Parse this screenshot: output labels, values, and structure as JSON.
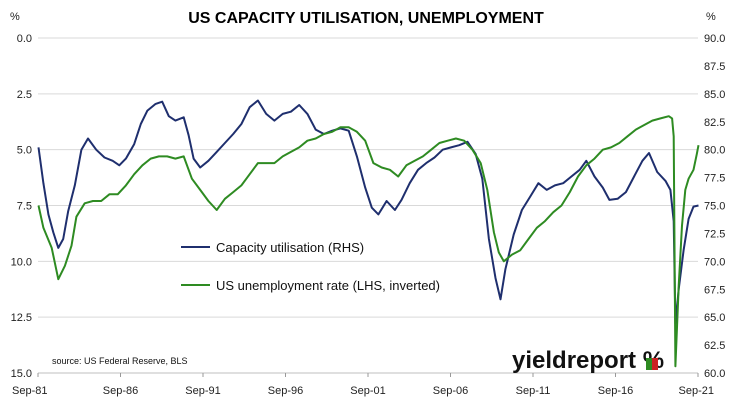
{
  "chart_data": {
    "type": "line",
    "title": "US CAPACITY UTILISATION, UNEMPLOYMENT",
    "left_unit": "%",
    "right_unit": "%",
    "x_range": [
      "1981-09",
      "2021-09"
    ],
    "x_ticks": [
      "Sep-81",
      "Sep-86",
      "Sep-91",
      "Sep-96",
      "Sep-01",
      "Sep-06",
      "Sep-11",
      "Sep-16",
      "Sep-21"
    ],
    "left_axis": {
      "min": 0,
      "max": 15,
      "inverted": true,
      "ticks": [
        "0.0",
        "2.5",
        "5.0",
        "7.5",
        "10.0",
        "12.5",
        "15.0"
      ]
    },
    "right_axis": {
      "min": 60,
      "max": 90,
      "ticks": [
        "60.0",
        "62.5",
        "65.0",
        "67.5",
        "70.0",
        "72.5",
        "75.0",
        "77.5",
        "80.0",
        "82.5",
        "85.0",
        "87.5",
        "90.0"
      ]
    },
    "grid": "horizontal",
    "legend_placement": "center-left",
    "series": [
      {
        "name": "Capacity utilisation (RHS)",
        "axis": "right",
        "color": "#1f2f6e",
        "points": [
          [
            1981.7,
            80.2
          ],
          [
            1982.0,
            77.0
          ],
          [
            1982.3,
            74.2
          ],
          [
            1982.6,
            72.6
          ],
          [
            1982.9,
            71.2
          ],
          [
            1983.2,
            72.0
          ],
          [
            1983.5,
            74.5
          ],
          [
            1983.9,
            76.8
          ],
          [
            1984.3,
            80.0
          ],
          [
            1984.7,
            81.0
          ],
          [
            1985.2,
            80.0
          ],
          [
            1985.7,
            79.3
          ],
          [
            1986.2,
            79.0
          ],
          [
            1986.6,
            78.6
          ],
          [
            1987.0,
            79.2
          ],
          [
            1987.5,
            80.5
          ],
          [
            1987.9,
            82.3
          ],
          [
            1988.3,
            83.5
          ],
          [
            1988.8,
            84.1
          ],
          [
            1989.2,
            84.3
          ],
          [
            1989.6,
            83.0
          ],
          [
            1990.0,
            82.6
          ],
          [
            1990.5,
            82.9
          ],
          [
            1990.8,
            81.3
          ],
          [
            1991.1,
            79.2
          ],
          [
            1991.5,
            78.4
          ],
          [
            1992.0,
            79.0
          ],
          [
            1992.5,
            79.8
          ],
          [
            1993.0,
            80.6
          ],
          [
            1993.5,
            81.4
          ],
          [
            1994.0,
            82.3
          ],
          [
            1994.5,
            83.8
          ],
          [
            1995.0,
            84.4
          ],
          [
            1995.5,
            83.2
          ],
          [
            1996.0,
            82.6
          ],
          [
            1996.5,
            83.2
          ],
          [
            1997.0,
            83.4
          ],
          [
            1997.5,
            84.0
          ],
          [
            1998.0,
            83.2
          ],
          [
            1998.5,
            81.8
          ],
          [
            1999.0,
            81.4
          ],
          [
            1999.5,
            81.7
          ],
          [
            2000.0,
            81.9
          ],
          [
            2000.5,
            81.7
          ],
          [
            2001.0,
            79.4
          ],
          [
            2001.5,
            76.6
          ],
          [
            2001.9,
            74.8
          ],
          [
            2002.3,
            74.2
          ],
          [
            2002.8,
            75.4
          ],
          [
            2003.3,
            74.6
          ],
          [
            2003.7,
            75.5
          ],
          [
            2004.2,
            77.0
          ],
          [
            2004.7,
            78.2
          ],
          [
            2005.2,
            78.8
          ],
          [
            2005.7,
            79.3
          ],
          [
            2006.2,
            80.0
          ],
          [
            2006.7,
            80.2
          ],
          [
            2007.2,
            80.4
          ],
          [
            2007.7,
            80.7
          ],
          [
            2008.2,
            79.6
          ],
          [
            2008.6,
            77.4
          ],
          [
            2009.0,
            72.0
          ],
          [
            2009.4,
            68.5
          ],
          [
            2009.7,
            66.6
          ],
          [
            2010.0,
            69.3
          ],
          [
            2010.5,
            72.4
          ],
          [
            2011.0,
            74.6
          ],
          [
            2011.5,
            75.8
          ],
          [
            2012.0,
            77.0
          ],
          [
            2012.5,
            76.4
          ],
          [
            2013.0,
            76.8
          ],
          [
            2013.5,
            77.0
          ],
          [
            2014.0,
            77.6
          ],
          [
            2014.5,
            78.2
          ],
          [
            2014.9,
            79.0
          ],
          [
            2015.4,
            77.6
          ],
          [
            2015.9,
            76.6
          ],
          [
            2016.3,
            75.5
          ],
          [
            2016.8,
            75.6
          ],
          [
            2017.3,
            76.2
          ],
          [
            2017.8,
            77.6
          ],
          [
            2018.3,
            79.0
          ],
          [
            2018.7,
            79.7
          ],
          [
            2019.2,
            78.0
          ],
          [
            2019.7,
            77.2
          ],
          [
            2020.0,
            76.4
          ],
          [
            2020.2,
            73.6
          ],
          [
            2020.3,
            64.4
          ],
          [
            2020.5,
            67.5
          ],
          [
            2020.8,
            71.0
          ],
          [
            2021.1,
            73.8
          ],
          [
            2021.4,
            74.9
          ],
          [
            2021.7,
            75.0
          ]
        ]
      },
      {
        "name": "US unemployment rate (LHS, inverted)",
        "axis": "left",
        "color": "#2e8b22",
        "points": [
          [
            1981.7,
            7.5
          ],
          [
            1982.0,
            8.5
          ],
          [
            1982.5,
            9.4
          ],
          [
            1982.9,
            10.8
          ],
          [
            1983.3,
            10.2
          ],
          [
            1983.7,
            9.3
          ],
          [
            1984.0,
            8.0
          ],
          [
            1984.5,
            7.4
          ],
          [
            1985.0,
            7.3
          ],
          [
            1985.5,
            7.3
          ],
          [
            1986.0,
            7.0
          ],
          [
            1986.5,
            7.0
          ],
          [
            1987.0,
            6.6
          ],
          [
            1987.5,
            6.1
          ],
          [
            1988.0,
            5.7
          ],
          [
            1988.5,
            5.4
          ],
          [
            1989.0,
            5.3
          ],
          [
            1989.5,
            5.3
          ],
          [
            1990.0,
            5.4
          ],
          [
            1990.5,
            5.3
          ],
          [
            1991.0,
            6.3
          ],
          [
            1991.5,
            6.8
          ],
          [
            1992.0,
            7.3
          ],
          [
            1992.5,
            7.7
          ],
          [
            1993.0,
            7.2
          ],
          [
            1993.5,
            6.9
          ],
          [
            1994.0,
            6.6
          ],
          [
            1994.5,
            6.1
          ],
          [
            1995.0,
            5.6
          ],
          [
            1995.5,
            5.6
          ],
          [
            1996.0,
            5.6
          ],
          [
            1996.5,
            5.3
          ],
          [
            1997.0,
            5.1
          ],
          [
            1997.5,
            4.9
          ],
          [
            1998.0,
            4.6
          ],
          [
            1998.5,
            4.5
          ],
          [
            1999.0,
            4.3
          ],
          [
            1999.5,
            4.2
          ],
          [
            2000.0,
            4.0
          ],
          [
            2000.5,
            4.0
          ],
          [
            2001.0,
            4.2
          ],
          [
            2001.5,
            4.6
          ],
          [
            2002.0,
            5.6
          ],
          [
            2002.5,
            5.8
          ],
          [
            2003.0,
            5.9
          ],
          [
            2003.5,
            6.2
          ],
          [
            2004.0,
            5.7
          ],
          [
            2004.5,
            5.5
          ],
          [
            2005.0,
            5.3
          ],
          [
            2005.5,
            5.0
          ],
          [
            2006.0,
            4.7
          ],
          [
            2006.5,
            4.6
          ],
          [
            2007.0,
            4.5
          ],
          [
            2007.5,
            4.6
          ],
          [
            2008.0,
            5.0
          ],
          [
            2008.5,
            5.6
          ],
          [
            2008.9,
            6.8
          ],
          [
            2009.3,
            8.7
          ],
          [
            2009.6,
            9.6
          ],
          [
            2009.9,
            10.0
          ],
          [
            2010.4,
            9.7
          ],
          [
            2010.9,
            9.5
          ],
          [
            2011.4,
            9.0
          ],
          [
            2011.9,
            8.5
          ],
          [
            2012.4,
            8.2
          ],
          [
            2012.9,
            7.8
          ],
          [
            2013.4,
            7.5
          ],
          [
            2013.9,
            6.9
          ],
          [
            2014.4,
            6.2
          ],
          [
            2014.9,
            5.7
          ],
          [
            2015.4,
            5.4
          ],
          [
            2015.9,
            5.0
          ],
          [
            2016.4,
            4.9
          ],
          [
            2016.9,
            4.7
          ],
          [
            2017.4,
            4.4
          ],
          [
            2017.9,
            4.1
          ],
          [
            2018.4,
            3.9
          ],
          [
            2018.9,
            3.7
          ],
          [
            2019.4,
            3.6
          ],
          [
            2019.9,
            3.5
          ],
          [
            2020.1,
            3.6
          ],
          [
            2020.2,
            4.4
          ],
          [
            2020.3,
            14.7
          ],
          [
            2020.5,
            11.1
          ],
          [
            2020.7,
            8.4
          ],
          [
            2020.9,
            6.8
          ],
          [
            2021.1,
            6.3
          ],
          [
            2021.4,
            5.9
          ],
          [
            2021.6,
            5.2
          ],
          [
            2021.7,
            4.8
          ]
        ]
      }
    ]
  },
  "source": "source: US Federal Reserve, BLS",
  "logo": "yieldreport %"
}
